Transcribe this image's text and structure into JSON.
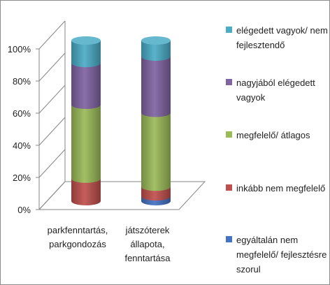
{
  "chart_data": {
    "type": "bar",
    "stacked": true,
    "percent_stacked": true,
    "three_d": true,
    "categories": [
      [
        "parkfenntartás,",
        "parkgondozás"
      ],
      [
        "játszóterek",
        "állapota,",
        "fenntartása"
      ]
    ],
    "series": [
      {
        "name": "egyáltalán nem megfelelő/ fejlesztésre szorul",
        "color": "#4472C4",
        "values": [
          0,
          3
        ]
      },
      {
        "name": "inkább nem megfelelő",
        "color": "#C0504D",
        "values": [
          14,
          6
        ]
      },
      {
        "name": "megfelelő/ átlagos",
        "color": "#9BBB59",
        "values": [
          46,
          46
        ]
      },
      {
        "name": "nagyjából elégedett vagyok",
        "color": "#8064A2",
        "values": [
          26,
          35
        ]
      },
      {
        "name": "elégedett vagyok/ nem fejlesztendő",
        "color": "#4BACC6",
        "values": [
          14,
          10
        ]
      }
    ],
    "y_ticks": [
      "0%",
      "20%",
      "40%",
      "60%",
      "80%",
      "100%"
    ],
    "ylim": [
      0,
      100
    ],
    "legend_position": "right",
    "grid": false
  },
  "legend": [
    {
      "lines": [
        "elégedett vagyok/ nem",
        "fejlesztendő"
      ],
      "color": "#4BACC6"
    },
    {
      "lines": [
        "nagyjából elégedett",
        "vagyok"
      ],
      "color": "#8064A2"
    },
    {
      "lines": [
        "megfelelő/ átlagos"
      ],
      "color": "#9BBB59"
    },
    {
      "lines": [
        "inkább nem megfelelő"
      ],
      "color": "#C0504D"
    },
    {
      "lines": [
        "egyáltalán nem",
        "megfelelő/ fejlesztésre",
        "szorul"
      ],
      "color": "#4472C4"
    }
  ]
}
